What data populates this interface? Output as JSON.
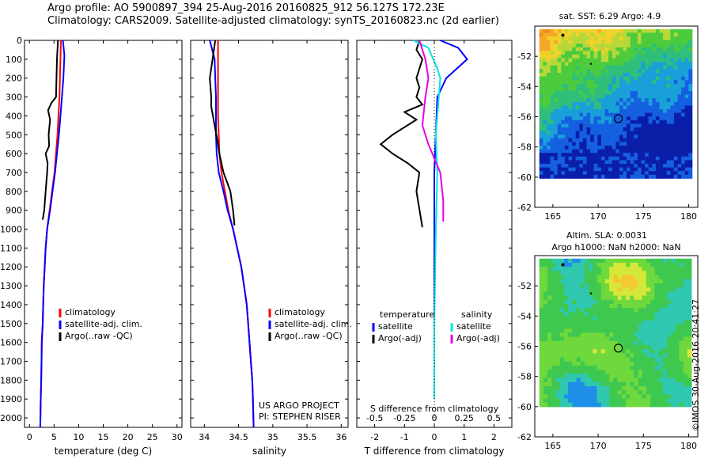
{
  "title": {
    "line1": "Argo profile: AO 5900897_394 25-Aug-2016 20160825_912 56.127S 172.23E",
    "line2": "Climatology: CARS2009. Satellite-adjusted climatology: synTS_20160823.nc (2d earlier)"
  },
  "stamp": "©IMOS 30-Aug-2016 20:41:27",
  "credits": {
    "line1": "US ARGO PROJECT",
    "line2": "PI: STEPHEN RISER"
  },
  "colors": {
    "climatology": "#ff0000",
    "satellite": "#0000ff",
    "argo": "#000000",
    "sat_salinity": "#00e5e5",
    "argo_salinity": "#e600e6"
  },
  "chart_data": [
    {
      "type": "line",
      "id": "temperature",
      "xlabel": "temperature (deg C)",
      "ylabel": "",
      "xlim": [
        -1,
        31
      ],
      "ylim": [
        2050,
        0
      ],
      "xticks": [
        0,
        5,
        10,
        15,
        20,
        25,
        30
      ],
      "yticks": [
        0,
        100,
        200,
        300,
        400,
        500,
        600,
        700,
        800,
        900,
        1000,
        1100,
        1200,
        1300,
        1400,
        1500,
        1600,
        1700,
        1800,
        1900,
        2000
      ],
      "legend": [
        "climatology",
        "satellite-adj. clim.",
        "Argo(..raw -QC)"
      ],
      "legend_position": "lower-center",
      "series": [
        {
          "name": "climatology",
          "color": "#ff0000",
          "x": [
            6.4,
            6.3,
            6.2,
            6.1,
            5.9,
            5.7,
            5.4,
            5.1,
            4.6,
            4.1,
            3.6,
            3.3,
            3.1,
            2.9,
            2.8,
            2.7,
            2.5,
            2.45,
            2.4,
            2.3,
            2.2
          ],
          "y": [
            0,
            100,
            200,
            300,
            400,
            500,
            600,
            700,
            800,
            900,
            1000,
            1100,
            1200,
            1300,
            1400,
            1500,
            1600,
            1700,
            1800,
            1900,
            2050
          ]
        },
        {
          "name": "satellite-adj. clim.",
          "color": "#0000ff",
          "x": [
            6.8,
            7.1,
            6.9,
            6.6,
            6.3,
            6.0,
            5.6,
            5.2,
            4.7,
            4.2,
            3.6,
            3.3,
            3.1,
            2.9,
            2.8,
            2.7,
            2.5,
            2.45,
            2.4,
            2.3,
            2.2
          ],
          "y": [
            0,
            80,
            200,
            300,
            400,
            500,
            600,
            700,
            800,
            900,
            1000,
            1100,
            1200,
            1300,
            1400,
            1500,
            1600,
            1700,
            1800,
            1900,
            2050
          ]
        },
        {
          "name": "Argo(..raw -QC)",
          "color": "#000000",
          "x": [
            5.8,
            5.6,
            5.5,
            5.4,
            4.5,
            3.8,
            4.2,
            3.9,
            4.0,
            3.3,
            3.7,
            3.6,
            3.3,
            3.0,
            2.7
          ],
          "y": [
            0,
            100,
            200,
            300,
            330,
            370,
            420,
            500,
            560,
            600,
            650,
            700,
            800,
            900,
            950
          ]
        }
      ]
    },
    {
      "type": "line",
      "id": "salinity",
      "xlabel": "salinity",
      "xlim": [
        33.8,
        36.1
      ],
      "ylim": [
        2050,
        0
      ],
      "xticks": [
        34,
        34.5,
        35,
        35.5,
        36
      ],
      "legend": [
        "climatology",
        "satellite-adj. clim.",
        "Argo(..raw -QC)"
      ],
      "legend_position": "lower-center",
      "series": [
        {
          "name": "climatology",
          "color": "#ff0000",
          "x": [
            34.2,
            34.2,
            34.2,
            34.2,
            34.2,
            34.21,
            34.22,
            34.25,
            34.3,
            34.35,
            34.42,
            34.48,
            34.54,
            34.58,
            34.62,
            34.64,
            34.66,
            34.68,
            34.7,
            34.71,
            34.72
          ],
          "y": [
            0,
            100,
            200,
            300,
            400,
            500,
            600,
            700,
            800,
            900,
            1000,
            1100,
            1200,
            1300,
            1400,
            1500,
            1600,
            1700,
            1800,
            1900,
            2050
          ]
        },
        {
          "name": "satellite-adj. clim.",
          "color": "#0000ff",
          "x": [
            34.08,
            34.15,
            34.16,
            34.17,
            34.17,
            34.17,
            34.18,
            34.21,
            34.28,
            34.34,
            34.42,
            34.48,
            34.54,
            34.58,
            34.62,
            34.64,
            34.66,
            34.68,
            34.7,
            34.71,
            34.72
          ],
          "y": [
            0,
            100,
            200,
            300,
            400,
            500,
            600,
            700,
            800,
            900,
            1000,
            1100,
            1200,
            1300,
            1400,
            1500,
            1600,
            1700,
            1800,
            1900,
            2050
          ]
        },
        {
          "name": "Argo(..raw -QC)",
          "color": "#000000",
          "x": [
            34.16,
            34.12,
            34.08,
            34.1,
            34.1,
            34.15,
            34.2,
            34.22,
            34.28,
            34.33,
            34.38,
            34.4,
            34.42,
            34.44
          ],
          "y": [
            0,
            100,
            200,
            300,
            350,
            450,
            550,
            600,
            700,
            750,
            800,
            850,
            900,
            980
          ]
        }
      ]
    },
    {
      "type": "line",
      "id": "difference",
      "xlabel": "T difference from climatology",
      "top_label": "S difference from climatology",
      "xlim": [
        -2.6,
        2.6
      ],
      "ylim": [
        2050,
        0
      ],
      "xticks": [
        -2,
        -1,
        0,
        1,
        2
      ],
      "xticks_top": [
        -0.5,
        -0.25,
        0,
        0.25,
        0.5
      ],
      "legend_temperature_heading": "temperature",
      "legend_salinity_heading": "salinity",
      "legend_temperature": [
        "satellite",
        "Argo(-adj)"
      ],
      "legend_salinity": [
        "satellite",
        "Argo(-adj)"
      ],
      "legend_position": "lower-center",
      "series": [
        {
          "name": "satellite",
          "group": "temperature",
          "color": "#0000ff",
          "x": [
            0.2,
            0.8,
            1.1,
            0.4,
            0.1,
            0.05,
            0.0,
            0.0,
            0.0,
            0.0
          ],
          "y": [
            0,
            40,
            100,
            200,
            300,
            500,
            700,
            1000,
            1500,
            1900
          ]
        },
        {
          "name": "Argo(-adj)",
          "group": "temperature",
          "color": "#000000",
          "x": [
            -0.5,
            -0.6,
            -0.4,
            -0.6,
            -0.5,
            -0.6,
            -0.4,
            -1.0,
            -0.6,
            -1.4,
            -1.8,
            -1.4,
            -0.9,
            -0.5,
            -0.6,
            -0.4
          ],
          "y": [
            0,
            50,
            100,
            200,
            250,
            300,
            340,
            380,
            420,
            500,
            550,
            600,
            650,
            700,
            800,
            990
          ]
        },
        {
          "name": "satellite",
          "group": "salinity",
          "color": "#00e5e5",
          "x": [
            -0.7,
            -0.2,
            0.1,
            0.2,
            0.1,
            0.05,
            0.1,
            0.05,
            0.0,
            0.0
          ],
          "y": [
            0,
            40,
            150,
            200,
            400,
            500,
            700,
            1000,
            1500,
            1900
          ]
        },
        {
          "name": "Argo(-adj)",
          "group": "salinity",
          "color": "#e600e6",
          "x": [
            -0.5,
            -0.3,
            -0.2,
            -0.3,
            -0.4,
            -0.2,
            0.2,
            0.3,
            0.3
          ],
          "y": [
            0,
            100,
            200,
            300,
            450,
            550,
            700,
            850,
            960
          ]
        }
      ]
    },
    {
      "type": "heatmap",
      "id": "sst-map",
      "title": "sat. SST: 6.29 Argo: 4.9",
      "xlim": [
        163,
        181
      ],
      "ylim": [
        -62,
        -50
      ],
      "xticks": [
        165,
        170,
        175,
        180
      ],
      "yticks": [
        -52,
        -54,
        -56,
        -58,
        -60,
        -62
      ],
      "profile_marker": {
        "lon": 172.23,
        "lat": -56.127
      }
    },
    {
      "type": "heatmap",
      "id": "sla-map",
      "title_line1": "Altim. SLA: 0.0031",
      "title_line2": "Argo h1000: NaN h2000: NaN",
      "xlim": [
        163,
        181
      ],
      "ylim": [
        -62,
        -50
      ],
      "xticks": [
        165,
        170,
        175,
        180
      ],
      "yticks": [
        -52,
        -54,
        -56,
        -58,
        -60,
        -62
      ],
      "profile_marker": {
        "lon": 172.23,
        "lat": -56.127
      }
    }
  ]
}
